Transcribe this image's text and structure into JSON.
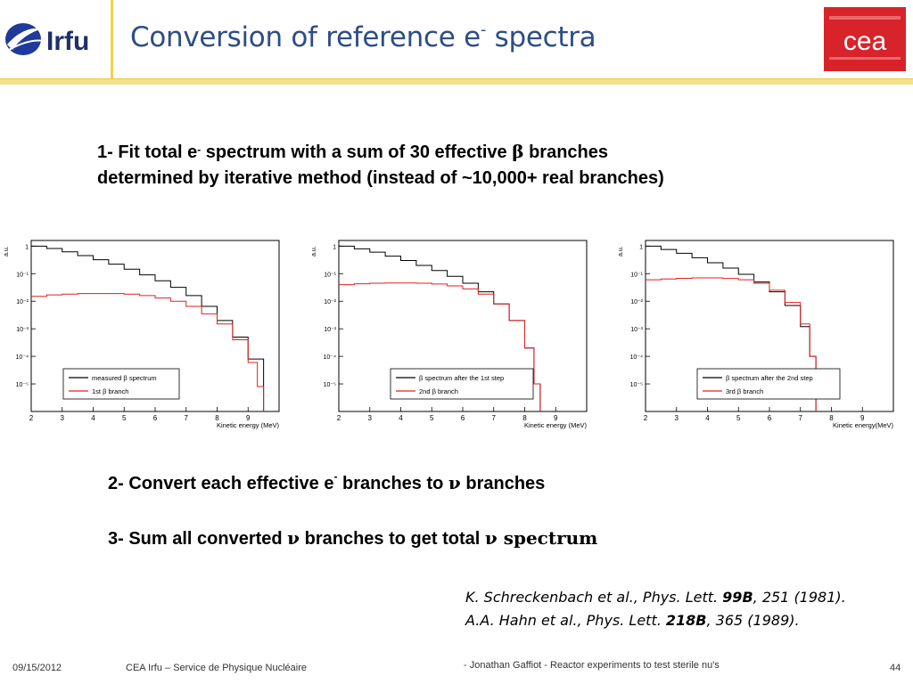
{
  "header": {
    "title_main": "Conversion of reference e",
    "title_sup": "-",
    "title_tail": " spectra",
    "irfu_logo_text": "Irfu",
    "cea_logo_text": "cea"
  },
  "points": {
    "p1_line1_a": "1- Fit total e",
    "p1_line1_sup": "-",
    "p1_line1_b": " spectrum with a sum of 30 effective ",
    "p1_greek": "β",
    "p1_line1_c": " branches",
    "p1_line2": "determined by iterative method (instead of ~10,000+ real branches)",
    "p2_a": "2- Convert each effective e",
    "p2_sup": "-",
    "p2_b": "  branches to ",
    "p2_greek": "ν",
    "p2_c": " branches",
    "p3_a": "3- Sum all converted ",
    "p3_greek": "ν",
    "p3_b": " branches to get total ",
    "p3_c": "ν spectrum"
  },
  "refs": {
    "r1_a": "K. Schreckenbach et al., Phys. Lett. ",
    "r1_b": "99B",
    "r1_c": ", 251 (1981).",
    "r2_a": "A.A. Hahn et al., Phys. Lett. ",
    "r2_b": "218B",
    "r2_c": ", 365 (1989)."
  },
  "footer": {
    "date": "09/15/2012",
    "org": "CEA Irfu – Service de Physique Nucléaire",
    "talk": "- Jonathan Gaffiot - Reactor experiments to test sterile nu's",
    "page": "44"
  },
  "colors": {
    "title": "#2d4d87",
    "accent_line": "#f2d34a",
    "cea_red": "#d8232a",
    "series_red": "#e02020",
    "series_black": "#000000"
  },
  "chart_data": [
    {
      "type": "line",
      "xlabel": "Kinetic energy (MeV)",
      "ylabel": "a.u.",
      "xlim": [
        2,
        10
      ],
      "ylim": [
        1e-06,
        1.6
      ],
      "yscale": "log",
      "x_ticks": [
        "2",
        "3",
        "4",
        "5",
        "6",
        "7",
        "8",
        "9"
      ],
      "y_ticks": [
        "1",
        "10⁻¹",
        "10⁻²",
        "10⁻³",
        "10⁻⁴",
        "10⁻⁵"
      ],
      "legend": {
        "placement": "bottom-center",
        "entries": [
          "measured β spectrum",
          "1st β branch"
        ]
      },
      "series": [
        {
          "name": "measured β spectrum",
          "color": "#000000",
          "x": [
            2,
            2.5,
            3,
            3.5,
            4,
            4.5,
            5,
            5.5,
            6,
            6.5,
            7,
            7.5,
            8,
            8.5,
            9,
            9.5
          ],
          "y": [
            1,
            0.82,
            0.62,
            0.45,
            0.32,
            0.22,
            0.145,
            0.09,
            0.055,
            0.032,
            0.016,
            0.0065,
            0.002,
            0.0005,
            8e-05,
            2e-06
          ]
        },
        {
          "name": "1st β branch",
          "color": "#e02020",
          "x": [
            2,
            2.5,
            3,
            3.5,
            4,
            4.5,
            5,
            5.5,
            6,
            6.5,
            7,
            7.5,
            8,
            8.5,
            9,
            9.3,
            9.5
          ],
          "y": [
            0.015,
            0.017,
            0.018,
            0.019,
            0.019,
            0.019,
            0.018,
            0.016,
            0.013,
            0.01,
            0.0065,
            0.0035,
            0.0015,
            0.0004,
            6e-05,
            8e-06,
            1e-06
          ]
        }
      ]
    },
    {
      "type": "line",
      "xlabel": "Kinetic energy (MeV)",
      "ylabel": "a.u.",
      "xlim": [
        2,
        10
      ],
      "ylim": [
        1e-06,
        1.6
      ],
      "yscale": "log",
      "x_ticks": [
        "2",
        "3",
        "4",
        "5",
        "6",
        "7",
        "8",
        "9"
      ],
      "y_ticks": [
        "1",
        "10⁻¹",
        "10⁻²",
        "10⁻³",
        "10⁻⁴",
        "10⁻⁵"
      ],
      "legend": {
        "placement": "bottom-right",
        "entries": [
          "β spectrum after the 1st step",
          "2nd β branch"
        ]
      },
      "series": [
        {
          "name": "β spectrum after the 1st step",
          "color": "#000000",
          "x": [
            2,
            2.5,
            3,
            3.5,
            4,
            4.5,
            5,
            5.5,
            6,
            6.5,
            7,
            7.5,
            8,
            8.3,
            8.5
          ],
          "y": [
            1,
            0.8,
            0.6,
            0.43,
            0.3,
            0.2,
            0.13,
            0.08,
            0.045,
            0.022,
            0.008,
            0.002,
            0.0002,
            1e-05,
            1e-06
          ]
        },
        {
          "name": "2nd β branch",
          "color": "#e02020",
          "x": [
            2,
            2.5,
            3,
            3.5,
            4,
            4.5,
            5,
            5.5,
            6,
            6.5,
            7,
            7.5,
            8,
            8.3,
            8.5
          ],
          "y": [
            0.04,
            0.043,
            0.045,
            0.046,
            0.046,
            0.045,
            0.042,
            0.036,
            0.028,
            0.018,
            0.008,
            0.002,
            0.0002,
            1e-05,
            1e-06
          ]
        }
      ]
    },
    {
      "type": "line",
      "xlabel": "Kinetic energy(MeV)",
      "ylabel": "a.u.",
      "xlim": [
        2,
        10
      ],
      "ylim": [
        1e-06,
        1.6
      ],
      "yscale": "log",
      "x_ticks": [
        "2",
        "3",
        "4",
        "5",
        "6",
        "7",
        "8",
        "9"
      ],
      "y_ticks": [
        "1",
        "10⁻¹",
        "10⁻²",
        "10⁻³",
        "10⁻⁴",
        "10⁻⁵"
      ],
      "legend": {
        "placement": "bottom-right",
        "entries": [
          "β spectrum after the 2nd step",
          "3rd β branch"
        ]
      },
      "series": [
        {
          "name": "β spectrum after the 2nd step",
          "color": "#000000",
          "x": [
            2,
            2.5,
            3,
            3.5,
            4,
            4.5,
            5,
            5.5,
            6,
            6.5,
            7,
            7.3,
            7.5
          ],
          "y": [
            1,
            0.75,
            0.55,
            0.38,
            0.25,
            0.16,
            0.095,
            0.05,
            0.022,
            0.007,
            0.0012,
            0.0001,
            1e-06
          ]
        },
        {
          "name": "3rd β branch",
          "color": "#e02020",
          "x": [
            2,
            2.5,
            3,
            3.5,
            4,
            4.5,
            5,
            5.5,
            6,
            6.5,
            7,
            7.3,
            7.5
          ],
          "y": [
            0.06,
            0.064,
            0.068,
            0.07,
            0.07,
            0.067,
            0.06,
            0.045,
            0.025,
            0.009,
            0.0015,
            0.0001,
            1e-06
          ]
        }
      ]
    }
  ]
}
